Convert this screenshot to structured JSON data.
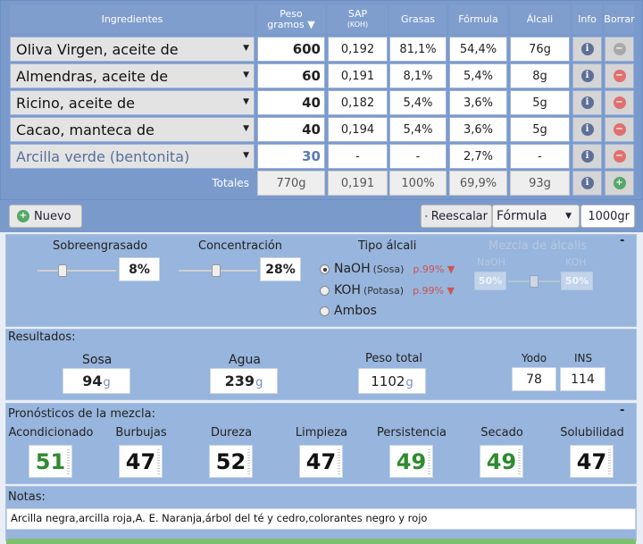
{
  "table": {
    "headers": {
      "ingredientes": "Ingredientes",
      "peso_line1": "Peso",
      "peso_line2": "gramos ▼",
      "sap": "SAP",
      "sap_sub": "(KOH)",
      "grasas": "Grasas",
      "formula": "Fórmula",
      "alcali": "Álcali",
      "info": "Info",
      "borrar": "Borrar"
    },
    "rows": [
      {
        "name": "Oliva Virgen, aceite de",
        "peso": "600",
        "sap": "0,192",
        "grasas": "81,1%",
        "formula": "54,4%",
        "alcali": "76g"
      },
      {
        "name": "Almendras, aceite de",
        "peso": "60",
        "sap": "0,191",
        "grasas": "8,1%",
        "formula": "5,4%",
        "alcali": "8g"
      },
      {
        "name": "Ricino, aceite de",
        "peso": "40",
        "sap": "0,182",
        "grasas": "5,4%",
        "formula": "3,6%",
        "alcali": "5g"
      },
      {
        "name": "Cacao, manteca de",
        "peso": "40",
        "sap": "0,194",
        "grasas": "5,4%",
        "formula": "3,6%",
        "alcali": "5g"
      },
      {
        "name": "Arcilla verde (bentonita)",
        "peso": "30",
        "sap": "-",
        "grasas": "-",
        "formula": "2,7%",
        "alcali": "-"
      }
    ],
    "totals": {
      "label": "Totales",
      "peso": "770g",
      "sap": "0,191",
      "grasas": "100%",
      "formula": "69,9%",
      "alcali": "93g"
    }
  },
  "toolbar": {
    "nuevo_label": "Nuevo",
    "reescalar_label": "Reescalar",
    "mode_select": "Fórmula",
    "amount": "1000gr"
  },
  "settings": {
    "sobreengrasado_label": "Sobreengrasado",
    "sobreengrasado_value": "8%",
    "sobreengrasado_level": 0.3,
    "concentracion_label": "Concentración",
    "concentracion_value": "28%",
    "concentracion_level": 0.48,
    "tipo_alcali_label": "Tipo álcali",
    "naoh_label": "NaOH",
    "naoh_sub": "(Sosa)",
    "naoh_purity": "p.99% ▼",
    "koh_label": "KOH",
    "koh_sub": "(Potasa)",
    "koh_purity": "p.99% ▼",
    "ambos_label": "Ambos",
    "mezcla_label": "Mezcla de álcalis",
    "mezcla_naoh_label": "NaOH",
    "mezcla_koh_label": "KOH",
    "mezcla_naoh_value": "50%",
    "mezcla_koh_value": "50%",
    "collapse": "-"
  },
  "results": {
    "title": "Resultados:",
    "sosa_label": "Sosa",
    "sosa_value": "94",
    "agua_label": "Agua",
    "agua_value": "239",
    "peso_label": "Peso total",
    "peso_value": "1102",
    "unit": "g",
    "yodo_label": "Yodo",
    "yodo_value": "78",
    "ins_label": "INS",
    "ins_value": "114"
  },
  "forecast": {
    "title": "Pronósticos de la mezcla:",
    "collapse": "-",
    "items": [
      {
        "label": "Acondicionado",
        "value": "51",
        "color": "#2e8b2e"
      },
      {
        "label": "Burbujas",
        "value": "47",
        "color": "#111111"
      },
      {
        "label": "Dureza",
        "value": "52",
        "color": "#111111"
      },
      {
        "label": "Limpieza",
        "value": "47",
        "color": "#111111"
      },
      {
        "label": "Persistencia",
        "value": "49",
        "color": "#2e8b2e"
      },
      {
        "label": "Secado",
        "value": "49",
        "color": "#2e8b2e"
      },
      {
        "label": "Solubilidad",
        "value": "47",
        "color": "#111111"
      }
    ]
  },
  "notes": {
    "title": "Notas:",
    "text": "Arcilla negra,arcilla roja,A. E. Naranja,árbol del té y cedro,colorantes negro y rojo"
  },
  "colors": {
    "header_blue": "#7b9acc",
    "panel_blue": "#97b5dd",
    "good_green": "#2e8b2e",
    "delete_red": "#e07070",
    "add_green": "#55a868"
  }
}
